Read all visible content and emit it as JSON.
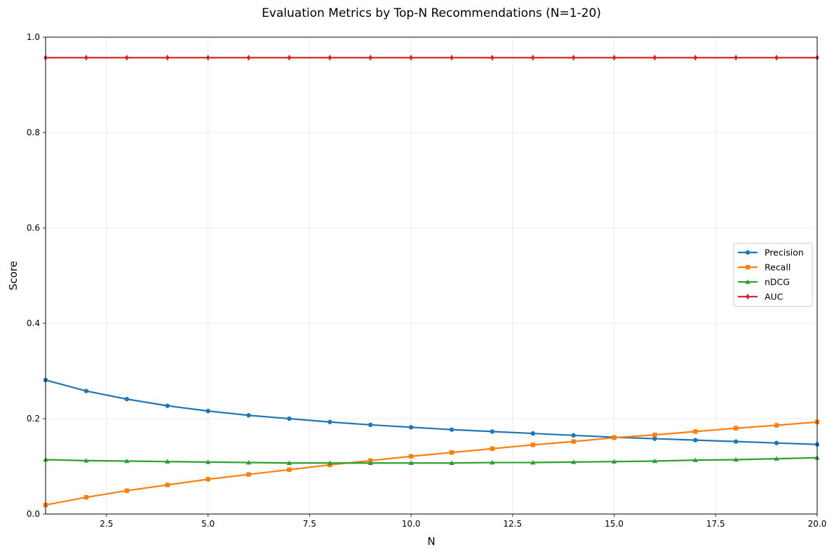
{
  "chart_data": {
    "type": "line",
    "title": "Evaluation Metrics by Top-N Recommendations (N=1-20)",
    "xlabel": "N",
    "ylabel": "Score",
    "xlim": [
      1,
      20
    ],
    "ylim": [
      0,
      1
    ],
    "xticks": [
      2.5,
      5.0,
      7.5,
      10.0,
      12.5,
      15.0,
      17.5,
      20.0
    ],
    "xtick_labels": [
      "2.5",
      "5.0",
      "7.5",
      "10.0",
      "12.5",
      "15.0",
      "17.5",
      "20.0"
    ],
    "yticks": [
      0,
      0.2,
      0.4,
      0.6,
      0.8,
      1.0
    ],
    "ytick_labels": [
      "0.0",
      "0.2",
      "0.4",
      "0.6",
      "0.8",
      "1.0"
    ],
    "grid": true,
    "legend_position": "center-right",
    "x": [
      1,
      2,
      3,
      4,
      5,
      6,
      7,
      8,
      9,
      10,
      11,
      12,
      13,
      14,
      15,
      16,
      17,
      18,
      19,
      20
    ],
    "series": [
      {
        "name": "Precision",
        "color": "#1f77b4",
        "marker": "circle",
        "values": [
          0.281,
          0.258,
          0.241,
          0.227,
          0.216,
          0.207,
          0.2,
          0.193,
          0.187,
          0.182,
          0.177,
          0.173,
          0.169,
          0.165,
          0.161,
          0.158,
          0.155,
          0.152,
          0.149,
          0.146
        ]
      },
      {
        "name": "Recall",
        "color": "#ff7f0e",
        "marker": "square",
        "values": [
          0.019,
          0.035,
          0.049,
          0.061,
          0.073,
          0.083,
          0.093,
          0.103,
          0.112,
          0.121,
          0.129,
          0.137,
          0.145,
          0.152,
          0.16,
          0.166,
          0.173,
          0.18,
          0.186,
          0.193
        ]
      },
      {
        "name": "nDCG",
        "color": "#2ca02c",
        "marker": "triangle",
        "values": [
          0.114,
          0.112,
          0.111,
          0.11,
          0.109,
          0.108,
          0.107,
          0.107,
          0.107,
          0.107,
          0.107,
          0.108,
          0.108,
          0.109,
          0.11,
          0.111,
          0.113,
          0.114,
          0.116,
          0.118
        ]
      },
      {
        "name": "AUC",
        "color": "#d62728",
        "marker": "diamond",
        "values": [
          0.957,
          0.957,
          0.957,
          0.957,
          0.957,
          0.957,
          0.957,
          0.957,
          0.957,
          0.957,
          0.957,
          0.957,
          0.957,
          0.957,
          0.957,
          0.957,
          0.957,
          0.957,
          0.957,
          0.957
        ]
      }
    ]
  }
}
